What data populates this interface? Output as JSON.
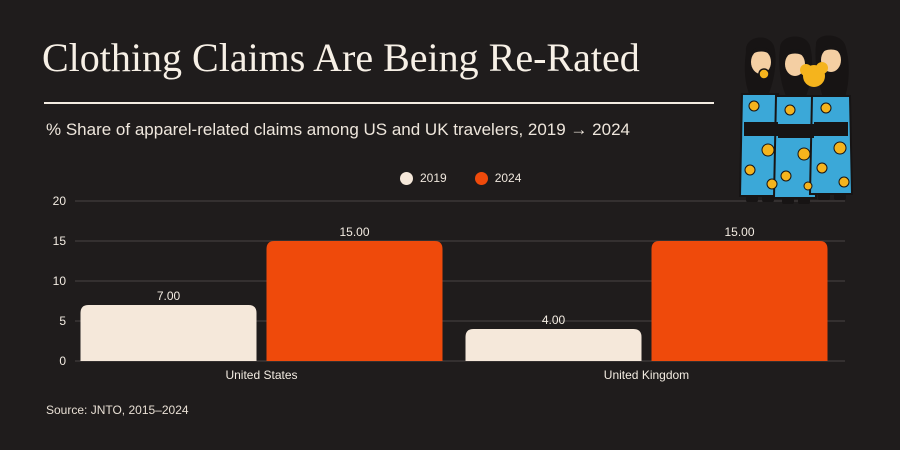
{
  "page": {
    "title": "Clothing Claims Are Being Re-Rated",
    "subtitle": "% Share of apparel-related claims among US and UK travelers, 2019 → 2024",
    "source": "Source: JNTO, 2015–2024"
  },
  "colors": {
    "background": "#1f1c1c",
    "series_2019": "#f5e8da",
    "series_2024": "#ef4a0b",
    "text": "#f3ece2",
    "grid": "#4a4545"
  },
  "legend": {
    "placement": "top-center",
    "items": [
      {
        "label": "2019",
        "color": "#f5e8da"
      },
      {
        "label": "2024",
        "color": "#ef4a0b"
      }
    ]
  },
  "chart_data": {
    "type": "bar",
    "title": "Clothing Claims Are Being Re-Rated",
    "subtitle": "% Share of apparel-related claims among US and UK travelers, 2019 → 2024",
    "categories": [
      "United States",
      "United Kingdom"
    ],
    "series": [
      {
        "name": "2019",
        "values": [
          7.0,
          4.0
        ],
        "color": "#f5e8da"
      },
      {
        "name": "2024",
        "values": [
          15.0,
          15.0
        ],
        "color": "#ef4a0b"
      }
    ],
    "value_labels": [
      [
        "7.00",
        "4.00"
      ],
      [
        "15.00",
        "15.00"
      ]
    ],
    "yticks": [
      "0",
      "5",
      "10",
      "15",
      "20"
    ],
    "ylim": [
      0,
      20
    ],
    "grid": true,
    "xlabel": "",
    "ylabel": ""
  },
  "illustration": {
    "icon": "three-women-in-kimono-illustration"
  }
}
